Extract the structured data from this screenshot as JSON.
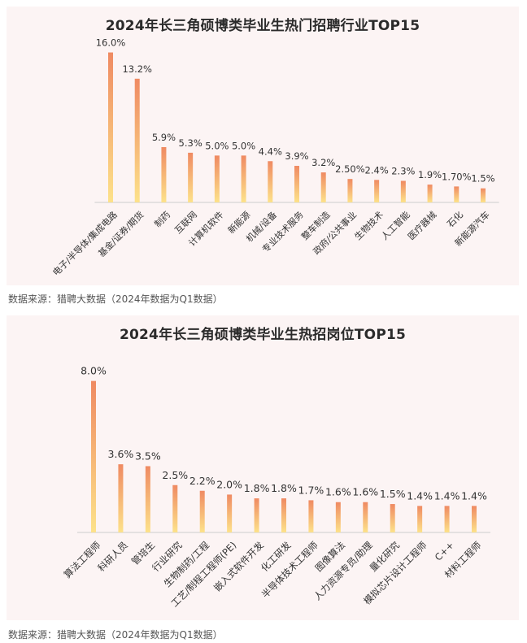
{
  "colors": {
    "bar_top": "#ef8a62",
    "bar_bottom": "#fde28a",
    "panel_bg": "#fcf4f4",
    "axis": "#cccccc",
    "text": "#333333"
  },
  "chart_data": [
    {
      "type": "bar",
      "title": "2024年长三角硕博类毕业生热门招聘行业TOP15",
      "categories": [
        "电子/半导体/集成电路",
        "基金/证券/期货",
        "制药",
        "互联网",
        "计算机软件",
        "新能源",
        "机械/设备",
        "专业技术服务",
        "整车制造",
        "政府/公共事业",
        "生物技术",
        "人工智能",
        "医疗器械",
        "石化",
        "新能源汽车"
      ],
      "values": [
        16.0,
        13.2,
        5.9,
        5.3,
        5.0,
        5.0,
        4.4,
        3.9,
        3.2,
        2.5,
        2.4,
        2.3,
        1.9,
        1.7,
        1.5
      ],
      "value_labels": [
        "16.0%",
        "13.2%",
        "5.9%",
        "5.3%",
        "5.0%",
        "5.0%",
        "4.4%",
        "3.9%",
        "3.2%",
        "2.50%",
        "2.4%",
        "2.3%",
        "1.9%",
        "1.70%",
        "1.5%"
      ],
      "ylim": [
        0,
        17
      ],
      "grid": false,
      "source": "数据来源：猎聘大数据（2024年数据为Q1数据）"
    },
    {
      "type": "bar",
      "title": "2024年长三角硕博类毕业生热招岗位TOP15",
      "categories": [
        "算法工程师",
        "科研人员",
        "管培生",
        "行业研究",
        "生物制药/工程",
        "工艺/制程工程师(PE)",
        "嵌入式软件开发",
        "化工研发",
        "半导体技术工程师",
        "图像算法",
        "人力资源专员/助理",
        "量化研究",
        "模拟芯片设计工程师",
        "C++",
        "材料工程师"
      ],
      "values": [
        8.0,
        3.6,
        3.5,
        2.5,
        2.2,
        2.0,
        1.8,
        1.8,
        1.7,
        1.6,
        1.6,
        1.5,
        1.4,
        1.4,
        1.4
      ],
      "value_labels": [
        "8.0%",
        "3.6%",
        "3.5%",
        "2.5%",
        "2.2%",
        "2.0%",
        "1.8%",
        "1.8%",
        "1.7%",
        "1.6%",
        "1.6%",
        "1.5%",
        "1.4%",
        "1.4%",
        "1.4%"
      ],
      "ylim": [
        0,
        8.5
      ],
      "grid": false,
      "source": "数据来源：猎聘大数据（2024年数据为Q1数据）"
    }
  ]
}
